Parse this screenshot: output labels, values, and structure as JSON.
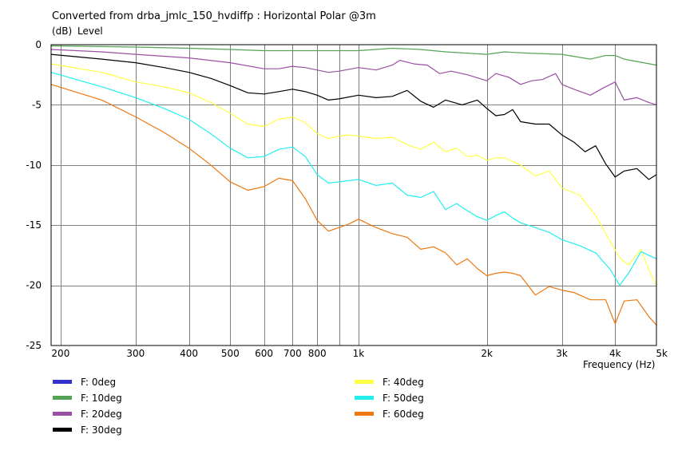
{
  "chart_data": {
    "type": "line",
    "title": "Converted from drba_jmlc_150_hvdiffp : Horizontal Polar @3m",
    "yunit": "(dB)",
    "ylabel": "Level",
    "xlabel": "Frequency (Hz)",
    "xscale": "log",
    "xlim": [
      190,
      5000
    ],
    "ylim": [
      -25,
      0
    ],
    "grid": true,
    "legend_position": "bottom",
    "colors": {
      "background": "#ffffff",
      "grid": "#808080",
      "axis": "#000000"
    },
    "yticks": [
      {
        "v": 0,
        "label": "0"
      },
      {
        "v": -5,
        "label": "-5"
      },
      {
        "v": -10,
        "label": "-10"
      },
      {
        "v": -15,
        "label": "-15"
      },
      {
        "v": -20,
        "label": "-20"
      },
      {
        "v": -25,
        "label": "-25"
      }
    ],
    "xticks": [
      {
        "v": 200,
        "label": "200"
      },
      {
        "v": 300,
        "label": "300"
      },
      {
        "v": 400,
        "label": "400"
      },
      {
        "v": 500,
        "label": "500"
      },
      {
        "v": 600,
        "label": "600"
      },
      {
        "v": 700,
        "label": "700"
      },
      {
        "v": 800,
        "label": "800"
      },
      {
        "v": 1000,
        "label": "1k"
      },
      {
        "v": 2000,
        "label": "2k"
      },
      {
        "v": 3000,
        "label": "3k"
      },
      {
        "v": 4000,
        "label": "4k"
      },
      {
        "v": 5000,
        "label": "5k"
      }
    ],
    "xgrid": [
      200,
      300,
      400,
      500,
      600,
      700,
      800,
      900,
      1000,
      2000,
      3000,
      4000,
      5000
    ],
    "series": [
      {
        "name": "F: 0deg",
        "color": "#3333cc",
        "x": [],
        "y": []
      },
      {
        "name": "F: 10deg",
        "color": "#55a355",
        "x": [
          190,
          300,
          400,
          500,
          600,
          700,
          800,
          1000,
          1200,
          1400,
          1600,
          2000,
          2200,
          2500,
          3000,
          3500,
          3800,
          4000,
          4200,
          5000
        ],
        "y": [
          -0.1,
          -0.2,
          -0.3,
          -0.4,
          -0.5,
          -0.5,
          -0.5,
          -0.5,
          -0.3,
          -0.4,
          -0.6,
          -0.8,
          -0.6,
          -0.7,
          -0.8,
          -1.2,
          -0.9,
          -0.9,
          -1.2,
          -1.7
        ]
      },
      {
        "name": "F: 20deg",
        "color": "#9b4fa3",
        "x": [
          190,
          250,
          300,
          400,
          500,
          600,
          650,
          700,
          750,
          850,
          900,
          1000,
          1100,
          1200,
          1250,
          1350,
          1450,
          1550,
          1650,
          1800,
          2000,
          2100,
          2250,
          2400,
          2550,
          2700,
          2900,
          3000,
          3200,
          3500,
          3750,
          4000,
          4200,
          4500,
          4800,
          5000
        ],
        "y": [
          -0.4,
          -0.6,
          -0.8,
          -1.1,
          -1.5,
          -2.0,
          -2.0,
          -1.8,
          -1.9,
          -2.3,
          -2.2,
          -1.9,
          -2.1,
          -1.7,
          -1.3,
          -1.6,
          -1.7,
          -2.4,
          -2.2,
          -2.5,
          -3.0,
          -2.4,
          -2.7,
          -3.3,
          -3.0,
          -2.9,
          -2.4,
          -3.3,
          -3.7,
          -4.2,
          -3.6,
          -3.1,
          -4.6,
          -4.4,
          -4.8,
          -5.0
        ]
      },
      {
        "name": "F: 30deg",
        "color": "#000000",
        "x": [
          190,
          250,
          300,
          350,
          400,
          450,
          500,
          550,
          600,
          650,
          700,
          750,
          800,
          850,
          900,
          1000,
          1100,
          1200,
          1300,
          1400,
          1500,
          1600,
          1750,
          1900,
          2000,
          2100,
          2200,
          2300,
          2400,
          2600,
          2800,
          3000,
          3200,
          3400,
          3600,
          3800,
          4000,
          4200,
          4500,
          4800,
          5000
        ],
        "y": [
          -0.8,
          -1.2,
          -1.5,
          -1.9,
          -2.3,
          -2.8,
          -3.4,
          -4.0,
          -4.1,
          -3.9,
          -3.7,
          -3.9,
          -4.2,
          -4.6,
          -4.5,
          -4.2,
          -4.4,
          -4.3,
          -3.8,
          -4.7,
          -5.2,
          -4.6,
          -5.0,
          -4.6,
          -5.3,
          -5.9,
          -5.8,
          -5.4,
          -6.4,
          -6.6,
          -6.6,
          -7.5,
          -8.1,
          -8.9,
          -8.4,
          -9.9,
          -11.0,
          -10.5,
          -10.3,
          -11.2,
          -10.8
        ]
      },
      {
        "name": "F: 40deg",
        "color": "#ffff44",
        "x": [
          190,
          250,
          300,
          350,
          400,
          450,
          500,
          550,
          600,
          650,
          700,
          750,
          800,
          850,
          900,
          950,
          1000,
          1100,
          1200,
          1300,
          1400,
          1500,
          1600,
          1700,
          1800,
          1900,
          2000,
          2100,
          2200,
          2400,
          2600,
          2800,
          3000,
          3300,
          3600,
          3900,
          4100,
          4300,
          4600,
          4800,
          5000
        ],
        "y": [
          -1.6,
          -2.3,
          -3.1,
          -3.5,
          -4.0,
          -4.8,
          -5.7,
          -6.6,
          -6.8,
          -6.2,
          -6.0,
          -6.5,
          -7.4,
          -7.8,
          -7.6,
          -7.5,
          -7.6,
          -7.8,
          -7.7,
          -8.3,
          -8.7,
          -8.1,
          -8.9,
          -8.6,
          -9.3,
          -9.2,
          -9.6,
          -9.4,
          -9.4,
          -10.0,
          -10.9,
          -10.5,
          -11.9,
          -12.5,
          -14.2,
          -16.4,
          -17.7,
          -18.3,
          -17.0,
          -18.7,
          -20.0
        ]
      },
      {
        "name": "F: 50deg",
        "color": "#22eeee",
        "x": [
          190,
          250,
          300,
          350,
          400,
          450,
          500,
          550,
          600,
          650,
          700,
          750,
          800,
          850,
          900,
          1000,
          1100,
          1200,
          1300,
          1400,
          1500,
          1600,
          1700,
          1800,
          1900,
          2000,
          2100,
          2200,
          2300,
          2400,
          2600,
          2800,
          3000,
          3300,
          3600,
          3900,
          4100,
          4300,
          4600,
          4800,
          5000
        ],
        "y": [
          -2.3,
          -3.5,
          -4.4,
          -5.3,
          -6.2,
          -7.4,
          -8.6,
          -9.4,
          -9.3,
          -8.7,
          -8.5,
          -9.3,
          -10.8,
          -11.5,
          -11.4,
          -11.2,
          -11.7,
          -11.5,
          -12.5,
          -12.7,
          -12.2,
          -13.7,
          -13.2,
          -13.8,
          -14.3,
          -14.6,
          -14.2,
          -13.9,
          -14.4,
          -14.8,
          -15.2,
          -15.6,
          -16.2,
          -16.7,
          -17.3,
          -18.7,
          -20.0,
          -19.0,
          -17.2,
          -17.5,
          -17.8
        ]
      },
      {
        "name": "F: 60deg",
        "color": "#ee7711",
        "x": [
          190,
          250,
          300,
          350,
          400,
          450,
          500,
          550,
          600,
          650,
          700,
          750,
          800,
          850,
          900,
          950,
          1000,
          1100,
          1200,
          1300,
          1400,
          1500,
          1600,
          1700,
          1800,
          1900,
          2000,
          2100,
          2200,
          2300,
          2400,
          2600,
          2800,
          3000,
          3200,
          3500,
          3800,
          4000,
          4200,
          4500,
          4800,
          5000
        ],
        "y": [
          -3.3,
          -4.6,
          -6.0,
          -7.3,
          -8.6,
          -10.0,
          -11.4,
          -12.1,
          -11.8,
          -11.1,
          -11.3,
          -12.8,
          -14.6,
          -15.5,
          -15.2,
          -14.9,
          -14.5,
          -15.2,
          -15.7,
          -16.0,
          -17.0,
          -16.8,
          -17.3,
          -18.3,
          -17.8,
          -18.6,
          -19.2,
          -19.0,
          -18.9,
          -19.0,
          -19.2,
          -20.8,
          -20.1,
          -20.4,
          -20.6,
          -21.2,
          -21.2,
          -23.2,
          -21.3,
          -21.2,
          -22.6,
          -23.3
        ]
      }
    ]
  }
}
